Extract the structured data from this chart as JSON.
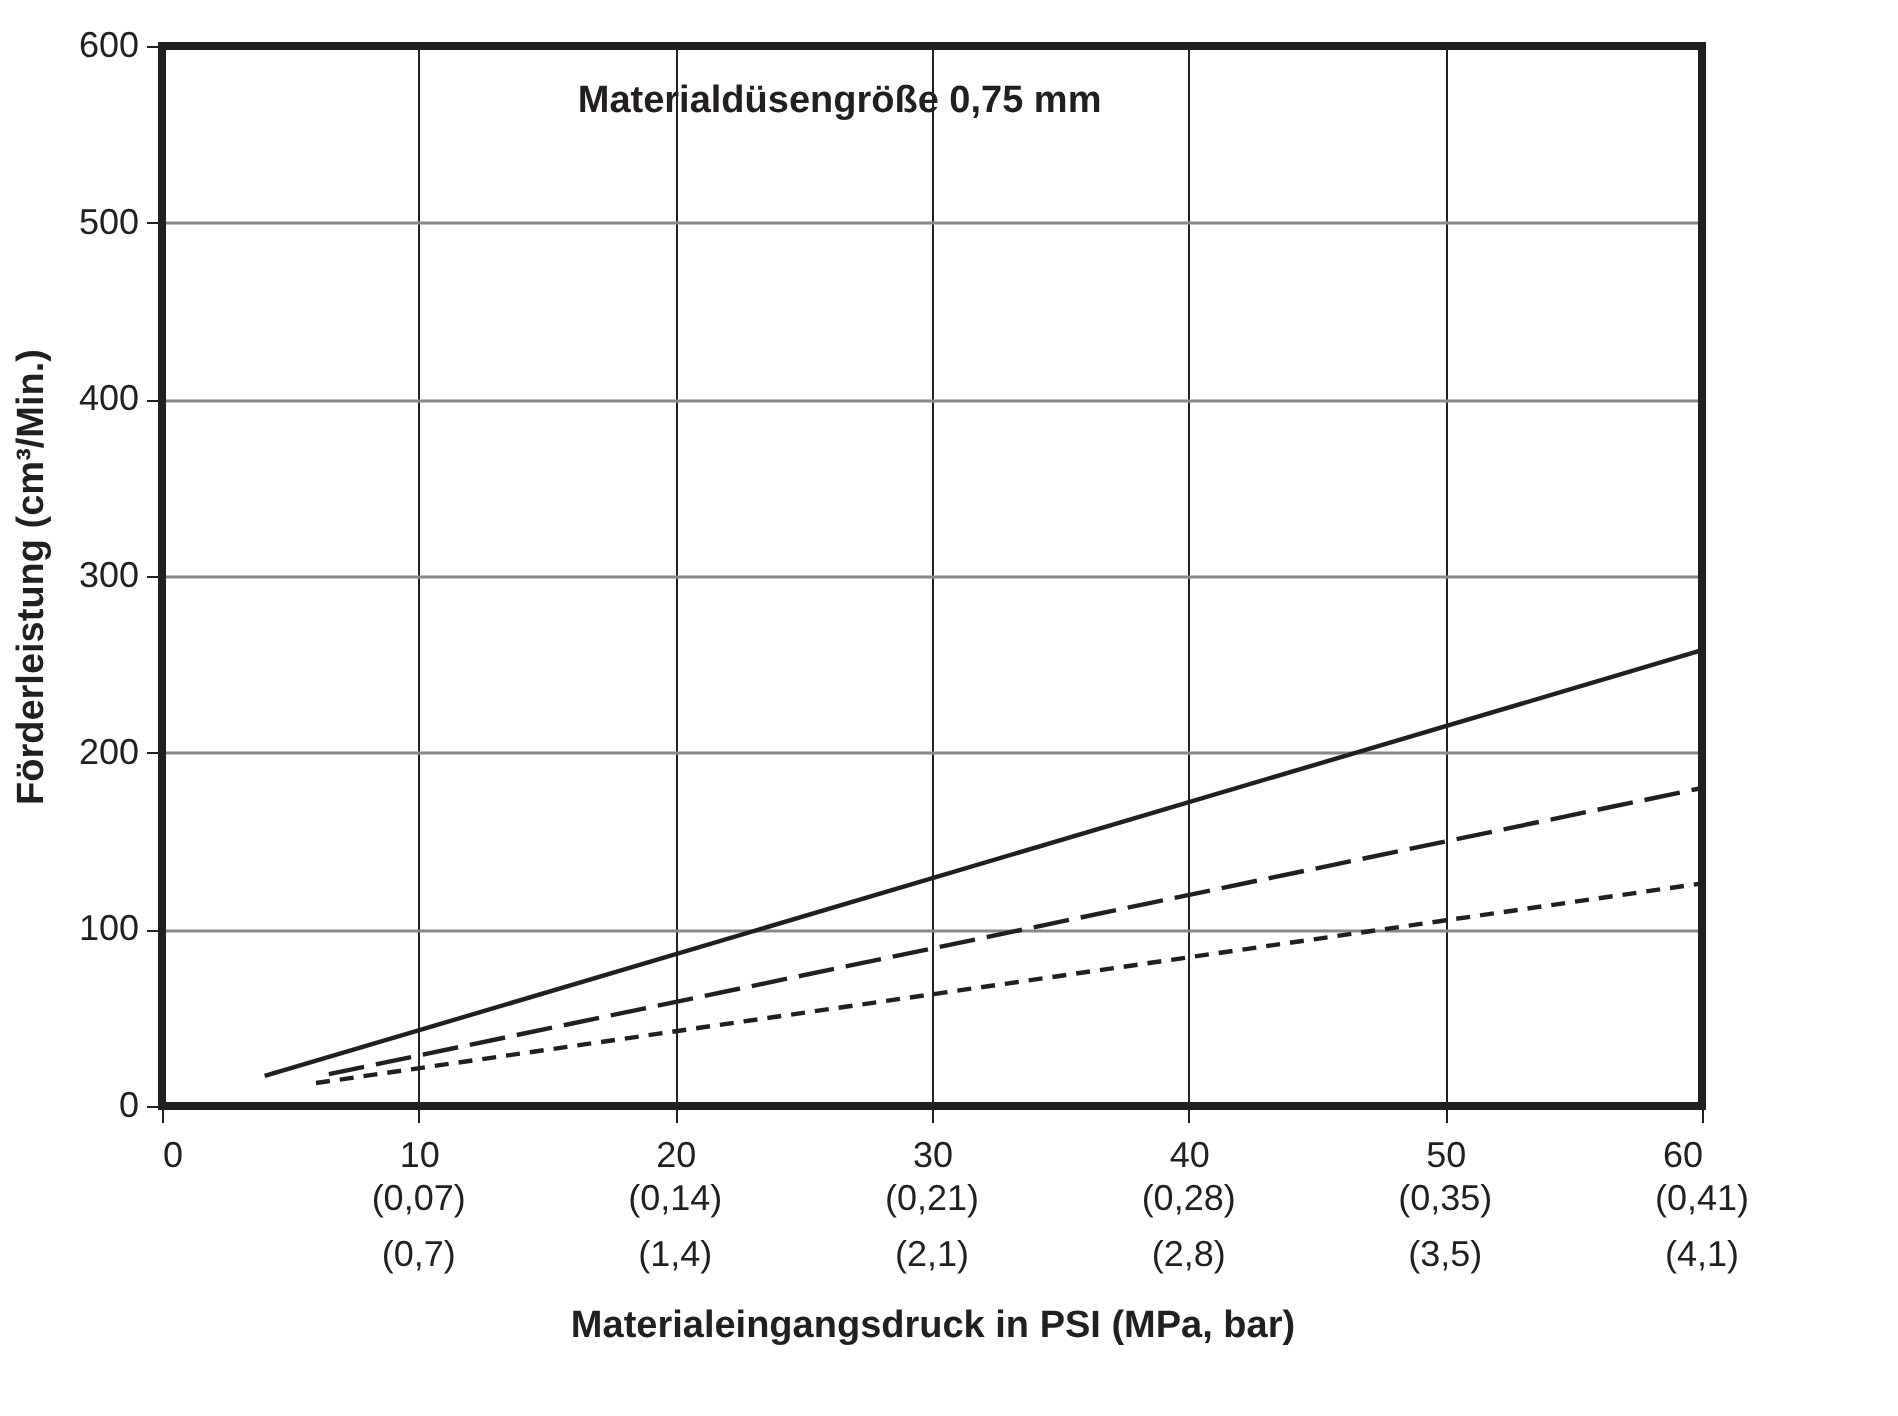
{
  "chart_data": {
    "type": "line",
    "title": "Materialdüsengröße 0,75 mm",
    "xlabel": "Materialeingangsdruck in PSI (MPa, bar)",
    "ylabel": "Förderleistung (cm³/Min.)",
    "series": [
      {
        "color": "#231f20",
        "line_style": "solid",
        "x": [
          4,
          60
        ],
        "values": [
          17,
          258
        ]
      },
      {
        "color": "#231f20",
        "line_style": "dashed",
        "x": [
          6.5,
          60
        ],
        "values": [
          18,
          180
        ]
      },
      {
        "color": "#231f20",
        "line_style": "dashed",
        "x": [
          6,
          60
        ],
        "values": [
          13,
          126
        ]
      }
    ],
    "xlim": [
      0,
      60
    ],
    "ylim": [
      0,
      600
    ],
    "xticks": [
      0,
      10,
      20,
      30,
      40,
      50,
      60
    ],
    "annotations": [
      "(0,07)\n(0,7)",
      "(0,14)\n(1,4)",
      "(0,21)\n(2,1)",
      "(0,28)\n(2,8)",
      "(0,35)\n(3,5)",
      "(0,41)\n(4,1)"
    ],
    "yticks": [
      0,
      100,
      200,
      300,
      400,
      500,
      600
    ],
    "grid": true,
    "legend": false
  }
}
